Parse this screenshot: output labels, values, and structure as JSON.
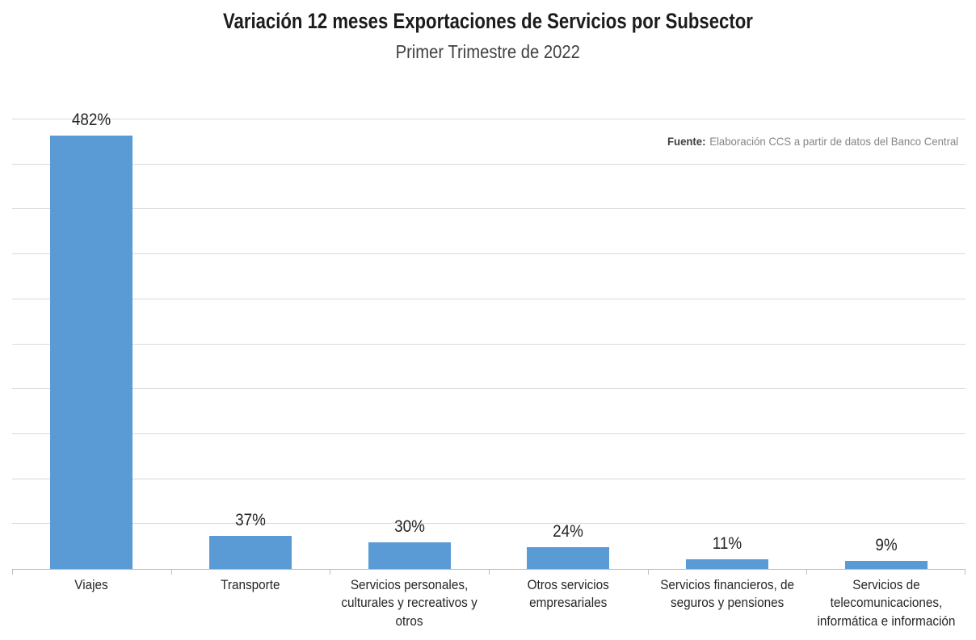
{
  "header": {
    "title": "Variación 12 meses Exportaciones de Servicios por Subsector",
    "subtitle": "Primer Trimestre de 2022"
  },
  "source": {
    "label": "Fuente:",
    "text": "Elaboración CCS a partir de datos del Banco Central"
  },
  "colors": {
    "bar": "#5b9bd5",
    "gridline": "#d9d9d9",
    "axis": "#bfbfbf"
  },
  "chart_data": {
    "type": "bar",
    "title": "Variación 12 meses Exportaciones de Servicios por Subsector",
    "subtitle": "Primer Trimestre de 2022",
    "categories": [
      "Viajes",
      "Transporte",
      "Servicios personales,\nculturales y recreativos y\notros",
      "Otros servicios\nempresariales",
      "Servicios financieros, de\nseguros y pensiones",
      "Servicios de\ntelecomunicaciones,\ninformática e información"
    ],
    "values": [
      482,
      37,
      30,
      24,
      11,
      9
    ],
    "data_labels": [
      "482%",
      "37%",
      "30%",
      "24%",
      "11%",
      "9%"
    ],
    "xlabel": "",
    "ylabel": "",
    "ylim": [
      0,
      500
    ],
    "grid_step": 50,
    "grid": true,
    "legend": false,
    "source_note": "Fuente: Elaboración CCS a partir de datos del Banco Central"
  }
}
